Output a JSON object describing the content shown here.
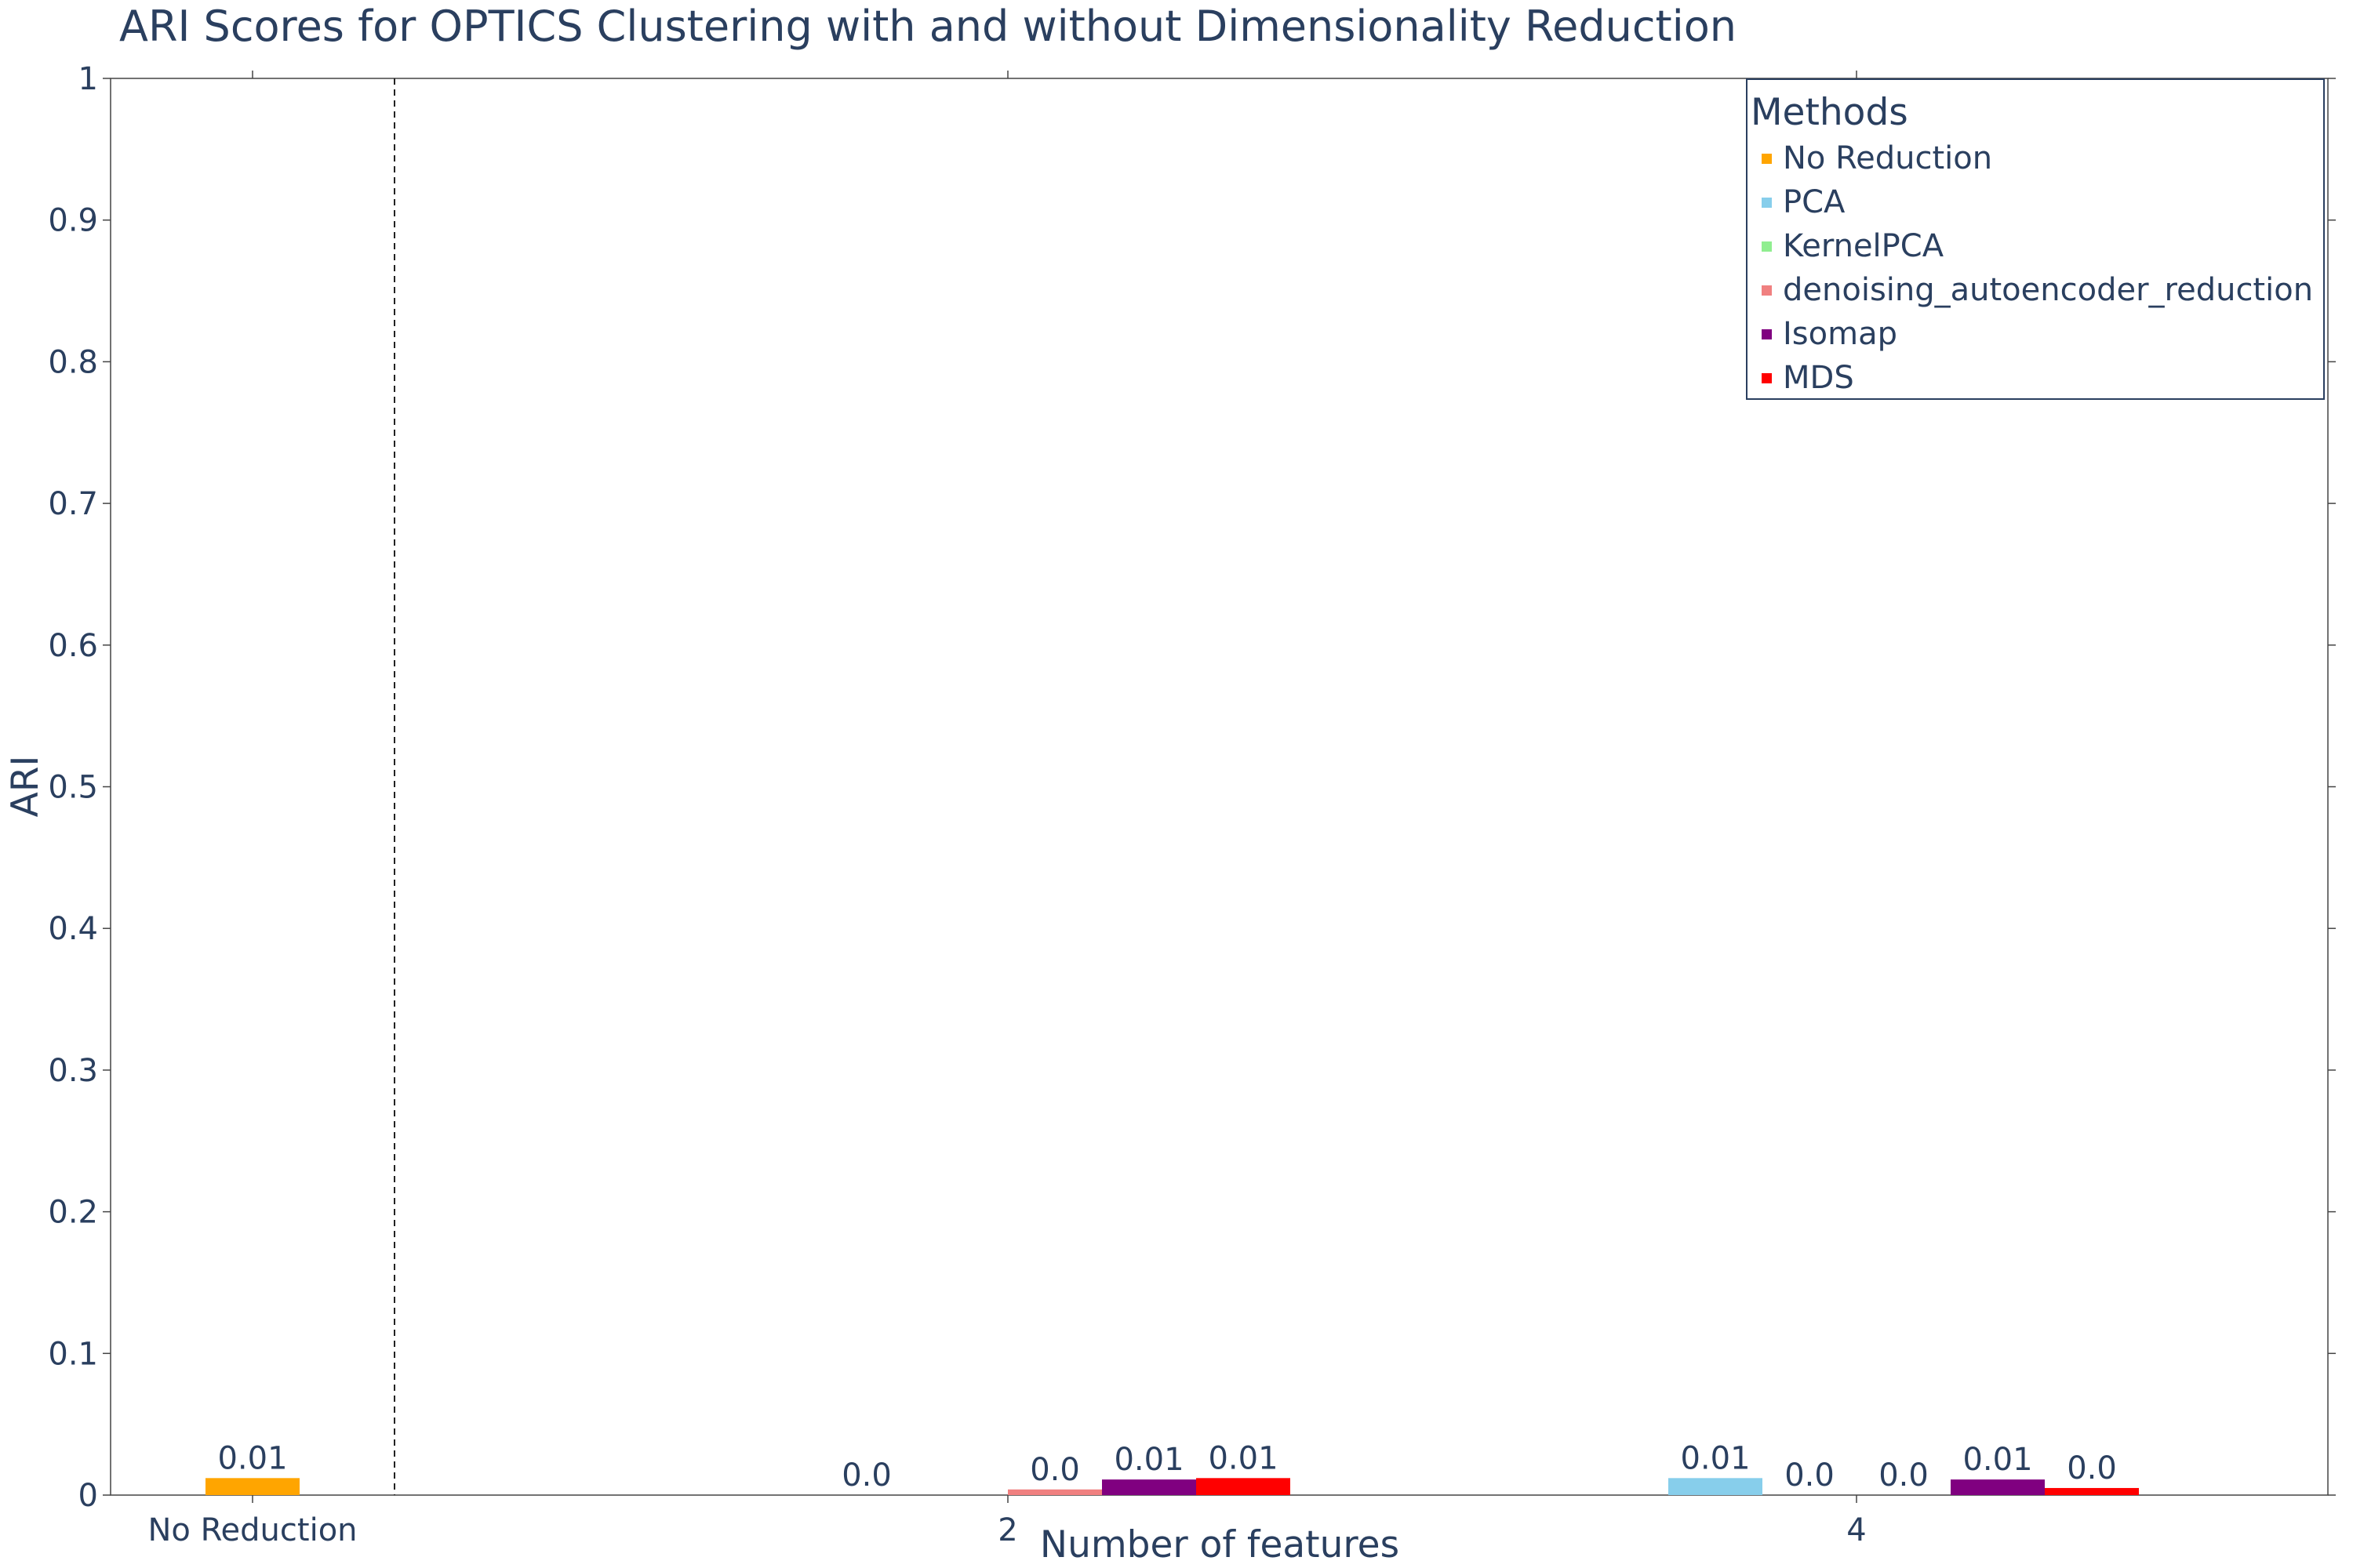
{
  "chart_data": {
    "type": "bar",
    "title": "ARI Scores for OPTICS Clustering with and without Dimensionality Reduction",
    "xlabel": "Number of features",
    "ylabel": "ARI",
    "ylim": [
      0,
      1
    ],
    "yticks": [
      "0",
      "0.1",
      "0.2",
      "0.3",
      "0.4",
      "0.5",
      "0.6",
      "0.7",
      "0.8",
      "0.9",
      "1"
    ],
    "categories": [
      "No Reduction",
      "2",
      "4"
    ],
    "separator_after": "No Reduction",
    "legend": {
      "title": "Methods",
      "position": "top-right"
    },
    "series": [
      {
        "name": "No Reduction",
        "color": "#FFA500",
        "values": [
          0.012,
          null,
          null
        ],
        "labels": [
          "0.01",
          null,
          null
        ]
      },
      {
        "name": "PCA",
        "color": "#87CEEB",
        "values": [
          null,
          0.0,
          0.012
        ],
        "labels": [
          null,
          "0.0",
          "0.01"
        ]
      },
      {
        "name": "KernelPCA",
        "color": "#90EE90",
        "values": [
          null,
          null,
          0.0
        ],
        "labels": [
          null,
          null,
          "0.0"
        ]
      },
      {
        "name": "denoising_autoencoder_reduction",
        "color": "#F08080",
        "values": [
          null,
          0.004,
          0.0
        ],
        "labels": [
          null,
          "0.0",
          "0.0"
        ]
      },
      {
        "name": "Isomap",
        "color": "#800080",
        "values": [
          null,
          0.011,
          0.011
        ],
        "labels": [
          null,
          "0.01",
          "0.01"
        ]
      },
      {
        "name": "MDS",
        "color": "#FF0000",
        "values": [
          null,
          0.012,
          0.005
        ],
        "labels": [
          null,
          "0.01",
          "0.0"
        ]
      }
    ]
  }
}
